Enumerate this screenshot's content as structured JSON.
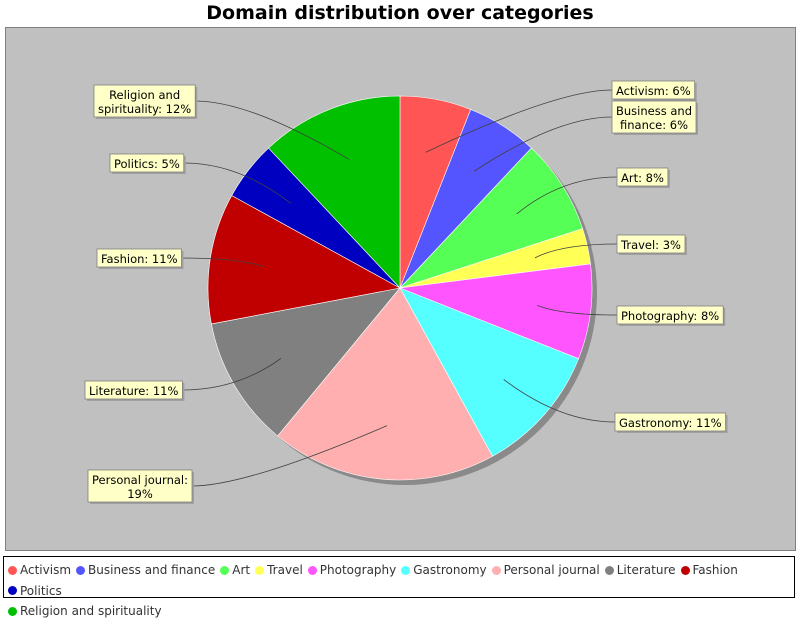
{
  "chart_data": {
    "type": "pie",
    "title": "Domain distribution over categories",
    "slices": [
      {
        "label": "Activism",
        "value": 6,
        "label_text": "Activism: 6%",
        "color": "#ff5555"
      },
      {
        "label": "Business and finance",
        "value": 6,
        "label_text": "Business and\nfinance: 6%",
        "color": "#5555ff"
      },
      {
        "label": "Art",
        "value": 8,
        "label_text": "Art: 8%",
        "color": "#55ff55"
      },
      {
        "label": "Travel",
        "value": 3,
        "label_text": "Travel: 3%",
        "color": "#ffff55"
      },
      {
        "label": "Photography",
        "value": 8,
        "label_text": "Photography: 8%",
        "color": "#ff55ff"
      },
      {
        "label": "Gastronomy",
        "value": 11,
        "label_text": "Gastronomy: 11%",
        "color": "#55ffff"
      },
      {
        "label": "Personal journal",
        "value": 19,
        "label_text": "Personal journal:\n19%",
        "color": "#ffafaf"
      },
      {
        "label": "Literature",
        "value": 11,
        "label_text": "Literature: 11%",
        "color": "#808080"
      },
      {
        "label": "Fashion",
        "value": 11,
        "label_text": "Fashion: 11%",
        "color": "#c00000"
      },
      {
        "label": "Politics",
        "value": 5,
        "label_text": "Politics: 5%",
        "color": "#0000c0"
      },
      {
        "label": "Religion and spirituality",
        "value": 12,
        "label_text": "Religion and\nspirituality: 12%",
        "color": "#00c000"
      }
    ],
    "legend_position": "bottom"
  }
}
